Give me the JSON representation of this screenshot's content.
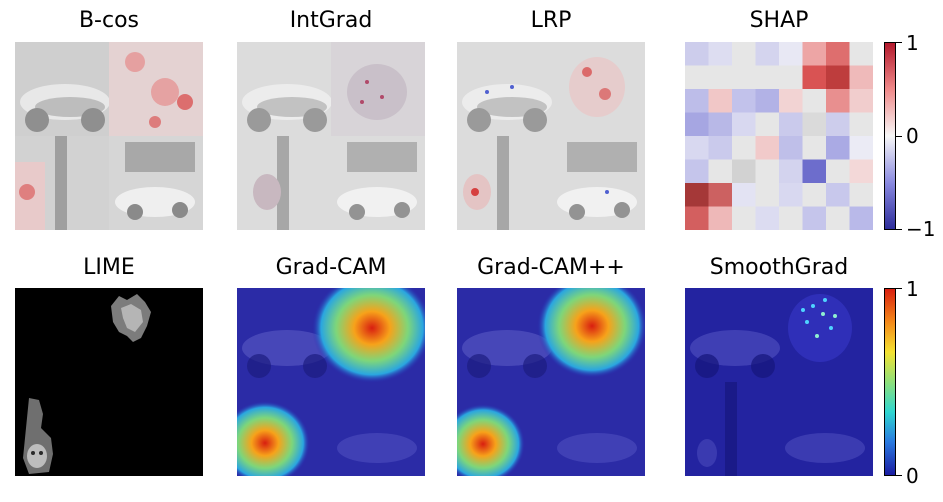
{
  "rows": [
    {
      "panels": [
        {
          "title": "B-cos",
          "style": "bcos"
        },
        {
          "title": "IntGrad",
          "style": "intgrad"
        },
        {
          "title": "LRP",
          "style": "lrp"
        },
        {
          "title": "SHAP",
          "style": "shap"
        }
      ],
      "colorbar": {
        "colormap": "bwr",
        "ticks": [
          "1",
          "0",
          "−1"
        ]
      }
    },
    {
      "panels": [
        {
          "title": "LIME",
          "style": "lime"
        },
        {
          "title": "Grad-CAM",
          "style": "gradcam"
        },
        {
          "title": "Grad-CAM++",
          "style": "gradcampp"
        },
        {
          "title": "SmoothGrad",
          "style": "smoothgrad"
        }
      ],
      "colorbar": {
        "colormap": "jet",
        "ticks": [
          "1",
          "0"
        ]
      }
    }
  ],
  "colors": {
    "positive": "#b2182b",
    "neutral": "#f7f7f7",
    "negative": "#2c2c9a",
    "jet_low": "#1a1aa0",
    "jet_high": "#e0201a"
  }
}
